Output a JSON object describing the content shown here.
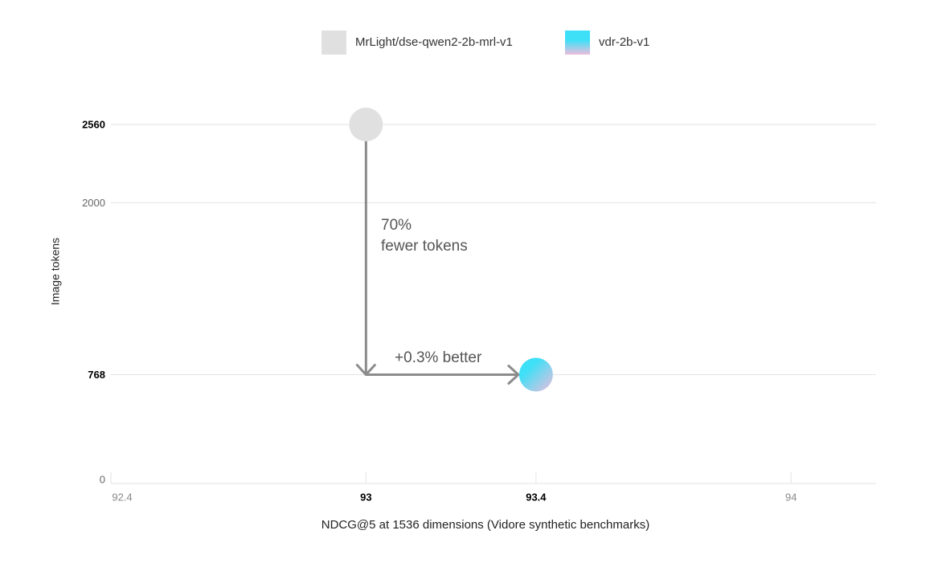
{
  "chart_data": {
    "type": "scatter",
    "x_label": "NDCG@5 at 1536 dimensions (Vidore synthetic benchmarks)",
    "y_label": "Image tokens",
    "xlim": [
      92.4,
      94.2
    ],
    "ylim": [
      0,
      2560
    ],
    "xticks": [
      92.4,
      93,
      93.4,
      94
    ],
    "xticks_bold": [
      false,
      true,
      true,
      false
    ],
    "yticks": [
      0,
      768,
      2000,
      2560
    ],
    "yticks_bold": [
      false,
      true,
      false,
      true
    ],
    "legend": "top",
    "series": [
      {
        "name": "MrLight/dse-qwen2-2b-mrl-v1",
        "color": [
          "#e0e0e0",
          "#e0e0e0"
        ],
        "x": [
          93
        ],
        "y": [
          2560
        ]
      },
      {
        "name": "vdr-2b-v1",
        "color": [
          "#3ee0f8",
          "#ecbddc"
        ],
        "x": [
          93.4
        ],
        "y": [
          768
        ]
      }
    ],
    "annotations": [
      "70%",
      "fewer tokens",
      "+0.3% better"
    ]
  }
}
